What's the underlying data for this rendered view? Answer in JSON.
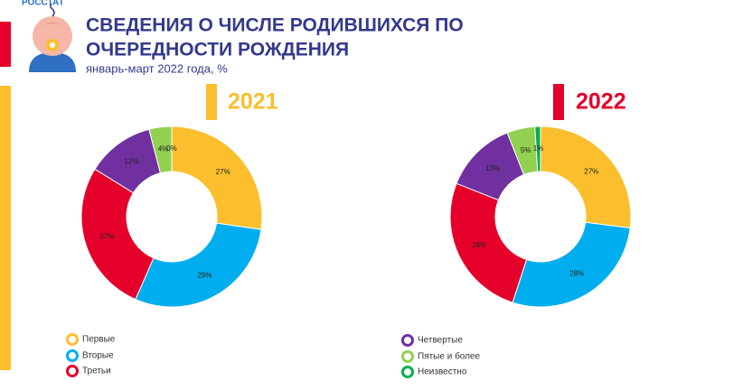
{
  "header": {
    "logo": "РОССТАТ",
    "title_line1": "СВЕДЕНИЯ О ЧИСЛЕ РОДИВШИХСЯ ПО",
    "title_line2": "ОЧЕРЕДНОСТИ РОЖДЕНИЯ",
    "subtitle": "январь-март 2022 года, %"
  },
  "chart_data": [
    {
      "type": "pie",
      "title": "2021",
      "donut": true,
      "categories": [
        "Первые",
        "Вторые",
        "Третьи",
        "Четвертые",
        "Пятые и более",
        "Неизвестно"
      ],
      "values": [
        27,
        29,
        27,
        12,
        4,
        0
      ],
      "value_labels": [
        "27%",
        "29%",
        "27%",
        "12%",
        "4%",
        "0%"
      ],
      "colors": [
        "#fbbf2e",
        "#00aeef",
        "#e4002b",
        "#7030a0",
        "#92d050",
        "#00b050"
      ]
    },
    {
      "type": "pie",
      "title": "2022",
      "donut": true,
      "categories": [
        "Первые",
        "Вторые",
        "Третьи",
        "Четвертые",
        "Пятые и более",
        "Неизвестно"
      ],
      "values": [
        27,
        28,
        26,
        13,
        5,
        1
      ],
      "value_labels": [
        "27%",
        "28%",
        "26%",
        "13%",
        "5%",
        "1%"
      ],
      "colors": [
        "#fbbf2e",
        "#00aeef",
        "#e4002b",
        "#7030a0",
        "#92d050",
        "#00b050"
      ]
    }
  ]
}
